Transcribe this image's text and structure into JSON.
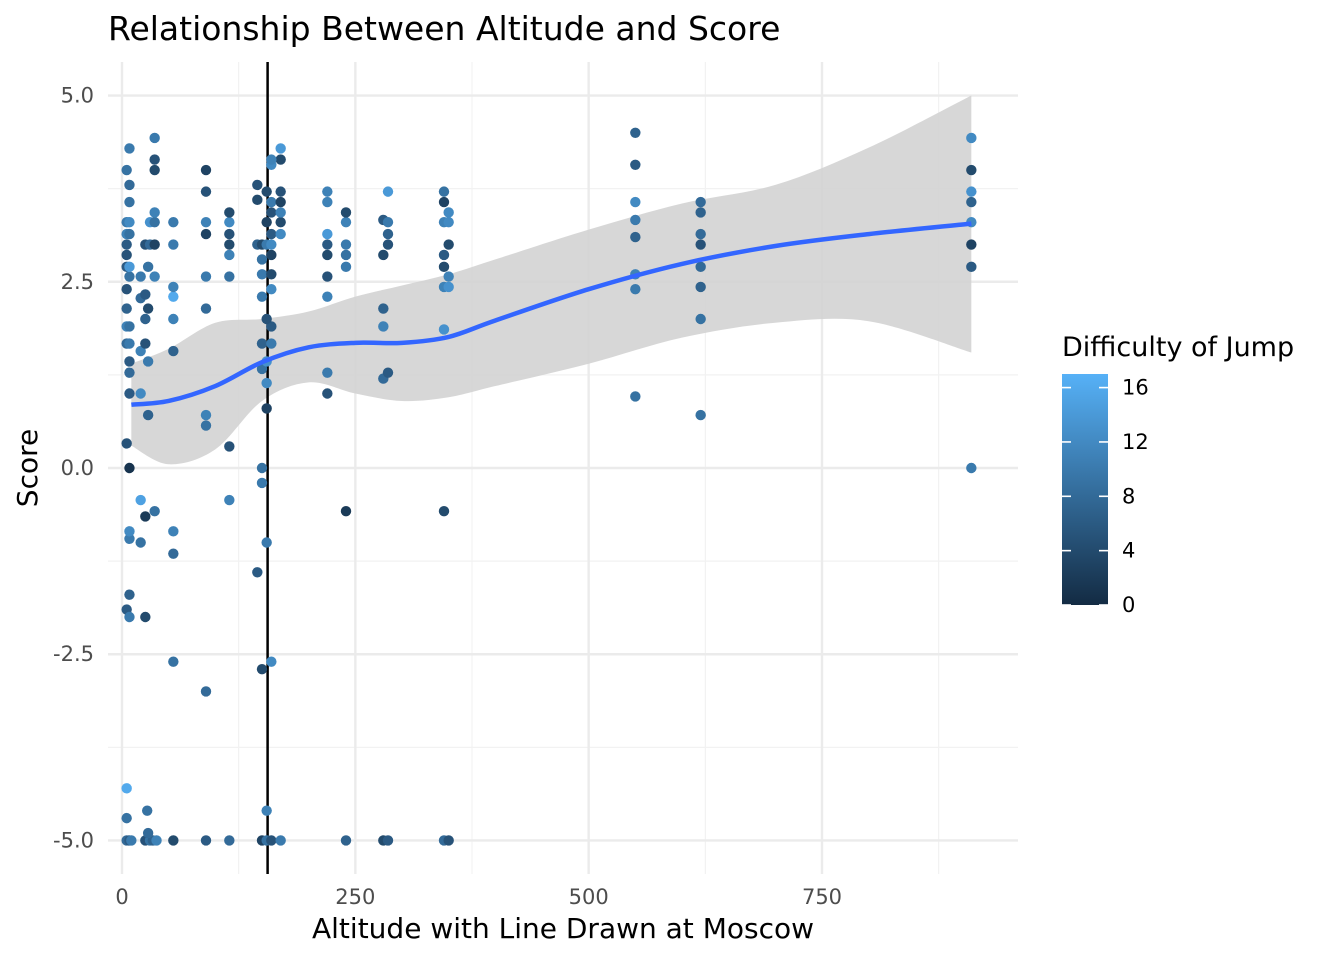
{
  "chart_data": {
    "type": "scatter",
    "title": "Relationship Between Altitude and Score",
    "xlabel": "Altitude with Line Drawn at Moscow",
    "ylabel": "Score",
    "xlim": [
      -15,
      960
    ],
    "ylim": [
      -5.45,
      5.45
    ],
    "x_ticks": [
      0,
      250,
      500,
      750
    ],
    "x_tick_labels": [
      "0",
      "250",
      "500",
      "750"
    ],
    "y_ticks": [
      -5,
      -2.5,
      0,
      2.5,
      5
    ],
    "y_tick_labels": [
      "-5.0",
      "-2.5",
      "0.0",
      "2.5",
      "5.0"
    ],
    "grid": true,
    "vline": {
      "x": 156
    },
    "smooth": {
      "color": "#3366FF",
      "band_color": "#D3D3D3",
      "x": [
        10,
        50,
        100,
        150,
        200,
        250,
        300,
        350,
        400,
        500,
        600,
        700,
        800,
        910
      ],
      "y": [
        0.85,
        0.9,
        1.1,
        1.42,
        1.62,
        1.68,
        1.68,
        1.76,
        1.98,
        2.4,
        2.74,
        2.98,
        3.14,
        3.28
      ],
      "lower": [
        0.3,
        0.05,
        0.25,
        0.9,
        1.15,
        1.0,
        0.9,
        0.95,
        1.1,
        1.4,
        1.75,
        1.95,
        1.97,
        1.55
      ],
      "upper": [
        1.4,
        1.6,
        1.95,
        2.0,
        2.1,
        2.3,
        2.45,
        2.6,
        2.8,
        3.2,
        3.55,
        3.8,
        4.3,
        5.0
      ]
    },
    "legend": {
      "title": "Difficulty of Jump",
      "placement": "right",
      "min": 0,
      "max": 17,
      "ticks": [
        0,
        4,
        8,
        12,
        16
      ],
      "low_color": "#132B43",
      "high_color": "#56B1F7"
    },
    "points": [
      {
        "x": 5,
        "y": -5,
        "d": 8
      },
      {
        "x": 8,
        "y": -5,
        "d": 6
      },
      {
        "x": 10,
        "y": -5,
        "d": 10
      },
      {
        "x": 25,
        "y": -5,
        "d": 5
      },
      {
        "x": 30,
        "y": -5,
        "d": 9
      },
      {
        "x": 33,
        "y": -5,
        "d": 7
      },
      {
        "x": 37,
        "y": -5,
        "d": 11
      },
      {
        "x": 55,
        "y": -5,
        "d": 4
      },
      {
        "x": 90,
        "y": -5,
        "d": 6
      },
      {
        "x": 115,
        "y": -5,
        "d": 8
      },
      {
        "x": 150,
        "y": -5,
        "d": 3
      },
      {
        "x": 155,
        "y": -5,
        "d": 9
      },
      {
        "x": 160,
        "y": -5,
        "d": 5
      },
      {
        "x": 170,
        "y": -5,
        "d": 10
      },
      {
        "x": 240,
        "y": -5,
        "d": 7
      },
      {
        "x": 280,
        "y": -5,
        "d": 4
      },
      {
        "x": 285,
        "y": -5,
        "d": 6
      },
      {
        "x": 345,
        "y": -5,
        "d": 8
      },
      {
        "x": 350,
        "y": -5,
        "d": 5
      },
      {
        "x": 5,
        "y": -4.3,
        "d": 16
      },
      {
        "x": 5,
        "y": -4.7,
        "d": 9
      },
      {
        "x": 27,
        "y": -4.6,
        "d": 9
      },
      {
        "x": 28,
        "y": -4.9,
        "d": 8
      },
      {
        "x": 155,
        "y": -4.6,
        "d": 11
      },
      {
        "x": 90,
        "y": -3.0,
        "d": 8
      },
      {
        "x": 55,
        "y": -2.6,
        "d": 9
      },
      {
        "x": 160,
        "y": -2.6,
        "d": 12
      },
      {
        "x": 150,
        "y": -2.7,
        "d": 4
      },
      {
        "x": 8,
        "y": -1.7,
        "d": 7
      },
      {
        "x": 5,
        "y": -1.9,
        "d": 6
      },
      {
        "x": 8,
        "y": -2.0,
        "d": 10
      },
      {
        "x": 25,
        "y": -2.0,
        "d": 4
      },
      {
        "x": 145,
        "y": -1.4,
        "d": 6
      },
      {
        "x": 55,
        "y": -1.15,
        "d": 8
      },
      {
        "x": 20,
        "y": -1.0,
        "d": 9
      },
      {
        "x": 8,
        "y": -0.95,
        "d": 10
      },
      {
        "x": 8,
        "y": -0.85,
        "d": 12
      },
      {
        "x": 55,
        "y": -0.85,
        "d": 11
      },
      {
        "x": 155,
        "y": -1.0,
        "d": 10
      },
      {
        "x": 25,
        "y": -0.65,
        "d": 2
      },
      {
        "x": 35,
        "y": -0.58,
        "d": 9
      },
      {
        "x": 240,
        "y": -0.58,
        "d": 2
      },
      {
        "x": 345,
        "y": -0.58,
        "d": 4
      },
      {
        "x": 20,
        "y": -0.43,
        "d": 15
      },
      {
        "x": 115,
        "y": -0.43,
        "d": 11
      },
      {
        "x": 150,
        "y": -0.2,
        "d": 10
      },
      {
        "x": 150,
        "y": 0,
        "d": 9
      },
      {
        "x": 8,
        "y": 0,
        "d": 1
      },
      {
        "x": 910,
        "y": 0,
        "d": 10
      },
      {
        "x": 5,
        "y": 0.33,
        "d": 5
      },
      {
        "x": 115,
        "y": 0.29,
        "d": 5
      },
      {
        "x": 90,
        "y": 0.57,
        "d": 9
      },
      {
        "x": 90,
        "y": 0.71,
        "d": 11
      },
      {
        "x": 28,
        "y": 0.71,
        "d": 7
      },
      {
        "x": 155,
        "y": 0.8,
        "d": 3
      },
      {
        "x": 550,
        "y": 0.96,
        "d": 9
      },
      {
        "x": 620,
        "y": 0.71,
        "d": 9
      },
      {
        "x": 8,
        "y": 1.0,
        "d": 6
      },
      {
        "x": 20,
        "y": 1.0,
        "d": 12
      },
      {
        "x": 220,
        "y": 1.0,
        "d": 5
      },
      {
        "x": 280,
        "y": 1.2,
        "d": 8
      },
      {
        "x": 285,
        "y": 1.28,
        "d": 6
      },
      {
        "x": 220,
        "y": 1.28,
        "d": 10
      },
      {
        "x": 155,
        "y": 1.14,
        "d": 12
      },
      {
        "x": 8,
        "y": 1.28,
        "d": 8
      },
      {
        "x": 8,
        "y": 1.43,
        "d": 6
      },
      {
        "x": 28,
        "y": 1.43,
        "d": 10
      },
      {
        "x": 150,
        "y": 1.33,
        "d": 9
      },
      {
        "x": 155,
        "y": 1.43,
        "d": 13
      },
      {
        "x": 20,
        "y": 1.57,
        "d": 11
      },
      {
        "x": 55,
        "y": 1.57,
        "d": 7
      },
      {
        "x": 5,
        "y": 1.67,
        "d": 8
      },
      {
        "x": 8,
        "y": 1.67,
        "d": 10
      },
      {
        "x": 25,
        "y": 1.67,
        "d": 5
      },
      {
        "x": 150,
        "y": 1.67,
        "d": 7
      },
      {
        "x": 160,
        "y": 1.67,
        "d": 10
      },
      {
        "x": 345,
        "y": 1.86,
        "d": 13
      },
      {
        "x": 280,
        "y": 1.9,
        "d": 11
      },
      {
        "x": 160,
        "y": 1.9,
        "d": 6
      },
      {
        "x": 5,
        "y": 1.9,
        "d": 11
      },
      {
        "x": 8,
        "y": 1.9,
        "d": 9
      },
      {
        "x": 155,
        "y": 2.0,
        "d": 5
      },
      {
        "x": 25,
        "y": 2.0,
        "d": 7
      },
      {
        "x": 55,
        "y": 2.0,
        "d": 11
      },
      {
        "x": 620,
        "y": 2.0,
        "d": 9
      },
      {
        "x": 5,
        "y": 2.14,
        "d": 7
      },
      {
        "x": 28,
        "y": 2.14,
        "d": 4
      },
      {
        "x": 90,
        "y": 2.14,
        "d": 8
      },
      {
        "x": 280,
        "y": 2.14,
        "d": 7
      },
      {
        "x": 20,
        "y": 2.28,
        "d": 8
      },
      {
        "x": 25,
        "y": 2.33,
        "d": 6
      },
      {
        "x": 55,
        "y": 2.3,
        "d": 16
      },
      {
        "x": 150,
        "y": 2.3,
        "d": 10
      },
      {
        "x": 220,
        "y": 2.3,
        "d": 11
      },
      {
        "x": 550,
        "y": 2.4,
        "d": 10
      },
      {
        "x": 5,
        "y": 2.4,
        "d": 5
      },
      {
        "x": 160,
        "y": 2.4,
        "d": 12
      },
      {
        "x": 345,
        "y": 2.43,
        "d": 11
      },
      {
        "x": 350,
        "y": 2.43,
        "d": 13
      },
      {
        "x": 620,
        "y": 2.43,
        "d": 7
      },
      {
        "x": 55,
        "y": 2.43,
        "d": 11
      },
      {
        "x": 35,
        "y": 2.57,
        "d": 11
      },
      {
        "x": 8,
        "y": 2.57,
        "d": 9
      },
      {
        "x": 20,
        "y": 2.57,
        "d": 10
      },
      {
        "x": 90,
        "y": 2.57,
        "d": 10
      },
      {
        "x": 115,
        "y": 2.57,
        "d": 9
      },
      {
        "x": 150,
        "y": 2.6,
        "d": 10
      },
      {
        "x": 220,
        "y": 2.57,
        "d": 5
      },
      {
        "x": 350,
        "y": 2.57,
        "d": 11
      },
      {
        "x": 550,
        "y": 2.6,
        "d": 11
      },
      {
        "x": 5,
        "y": 2.7,
        "d": 6
      },
      {
        "x": 8,
        "y": 2.7,
        "d": 14
      },
      {
        "x": 28,
        "y": 2.7,
        "d": 9
      },
      {
        "x": 160,
        "y": 2.6,
        "d": 4
      },
      {
        "x": 240,
        "y": 2.7,
        "d": 10
      },
      {
        "x": 345,
        "y": 2.7,
        "d": 4
      },
      {
        "x": 620,
        "y": 2.7,
        "d": 8
      },
      {
        "x": 910,
        "y": 2.7,
        "d": 6
      },
      {
        "x": 150,
        "y": 2.8,
        "d": 9
      },
      {
        "x": 5,
        "y": 2.86,
        "d": 5
      },
      {
        "x": 115,
        "y": 2.86,
        "d": 11
      },
      {
        "x": 160,
        "y": 2.86,
        "d": 3
      },
      {
        "x": 220,
        "y": 2.86,
        "d": 4
      },
      {
        "x": 240,
        "y": 2.86,
        "d": 9
      },
      {
        "x": 280,
        "y": 2.86,
        "d": 4
      },
      {
        "x": 345,
        "y": 2.86,
        "d": 6
      },
      {
        "x": 5,
        "y": 3.0,
        "d": 6
      },
      {
        "x": 25,
        "y": 3.0,
        "d": 5
      },
      {
        "x": 30,
        "y": 3.0,
        "d": 8
      },
      {
        "x": 35,
        "y": 3.0,
        "d": 3
      },
      {
        "x": 55,
        "y": 3.0,
        "d": 10
      },
      {
        "x": 115,
        "y": 3.0,
        "d": 4
      },
      {
        "x": 145,
        "y": 3.0,
        "d": 7
      },
      {
        "x": 150,
        "y": 3.0,
        "d": 4
      },
      {
        "x": 155,
        "y": 3.0,
        "d": 10
      },
      {
        "x": 160,
        "y": 3.0,
        "d": 12
      },
      {
        "x": 220,
        "y": 3.0,
        "d": 6
      },
      {
        "x": 240,
        "y": 3.0,
        "d": 10
      },
      {
        "x": 285,
        "y": 3.0,
        "d": 5
      },
      {
        "x": 350,
        "y": 3.0,
        "d": 4
      },
      {
        "x": 620,
        "y": 3.0,
        "d": 5
      },
      {
        "x": 910,
        "y": 3.0,
        "d": 3
      },
      {
        "x": 5,
        "y": 3.14,
        "d": 11
      },
      {
        "x": 8,
        "y": 3.14,
        "d": 9
      },
      {
        "x": 90,
        "y": 3.14,
        "d": 3
      },
      {
        "x": 115,
        "y": 3.14,
        "d": 5
      },
      {
        "x": 160,
        "y": 3.14,
        "d": 6
      },
      {
        "x": 170,
        "y": 3.14,
        "d": 12
      },
      {
        "x": 220,
        "y": 3.14,
        "d": 14
      },
      {
        "x": 285,
        "y": 3.14,
        "d": 7
      },
      {
        "x": 620,
        "y": 3.14,
        "d": 8
      },
      {
        "x": 550,
        "y": 3.1,
        "d": 7
      },
      {
        "x": 5,
        "y": 3.3,
        "d": 10
      },
      {
        "x": 8,
        "y": 3.3,
        "d": 12
      },
      {
        "x": 30,
        "y": 3.3,
        "d": 13
      },
      {
        "x": 35,
        "y": 3.3,
        "d": 9
      },
      {
        "x": 55,
        "y": 3.3,
        "d": 10
      },
      {
        "x": 90,
        "y": 3.3,
        "d": 11
      },
      {
        "x": 115,
        "y": 3.3,
        "d": 12
      },
      {
        "x": 155,
        "y": 3.3,
        "d": 3
      },
      {
        "x": 170,
        "y": 3.3,
        "d": 4
      },
      {
        "x": 240,
        "y": 3.3,
        "d": 11
      },
      {
        "x": 280,
        "y": 3.33,
        "d": 6
      },
      {
        "x": 285,
        "y": 3.3,
        "d": 10
      },
      {
        "x": 345,
        "y": 3.3,
        "d": 11
      },
      {
        "x": 350,
        "y": 3.3,
        "d": 12
      },
      {
        "x": 550,
        "y": 3.33,
        "d": 10
      },
      {
        "x": 910,
        "y": 3.3,
        "d": 12
      },
      {
        "x": 35,
        "y": 3.43,
        "d": 11
      },
      {
        "x": 115,
        "y": 3.43,
        "d": 4
      },
      {
        "x": 160,
        "y": 3.43,
        "d": 5
      },
      {
        "x": 170,
        "y": 3.43,
        "d": 11
      },
      {
        "x": 240,
        "y": 3.43,
        "d": 4
      },
      {
        "x": 350,
        "y": 3.43,
        "d": 12
      },
      {
        "x": 620,
        "y": 3.43,
        "d": 7
      },
      {
        "x": 8,
        "y": 3.57,
        "d": 9
      },
      {
        "x": 145,
        "y": 3.6,
        "d": 4
      },
      {
        "x": 160,
        "y": 3.57,
        "d": 10
      },
      {
        "x": 170,
        "y": 3.57,
        "d": 3
      },
      {
        "x": 220,
        "y": 3.57,
        "d": 11
      },
      {
        "x": 345,
        "y": 3.57,
        "d": 3
      },
      {
        "x": 550,
        "y": 3.57,
        "d": 12
      },
      {
        "x": 620,
        "y": 3.57,
        "d": 8
      },
      {
        "x": 910,
        "y": 3.57,
        "d": 7
      },
      {
        "x": 90,
        "y": 3.71,
        "d": 5
      },
      {
        "x": 155,
        "y": 3.71,
        "d": 4
      },
      {
        "x": 170,
        "y": 3.71,
        "d": 5
      },
      {
        "x": 220,
        "y": 3.71,
        "d": 11
      },
      {
        "x": 285,
        "y": 3.71,
        "d": 14
      },
      {
        "x": 345,
        "y": 3.71,
        "d": 9
      },
      {
        "x": 910,
        "y": 3.71,
        "d": 13
      },
      {
        "x": 8,
        "y": 3.8,
        "d": 8
      },
      {
        "x": 145,
        "y": 3.8,
        "d": 5
      },
      {
        "x": 5,
        "y": 4.0,
        "d": 9
      },
      {
        "x": 35,
        "y": 4.0,
        "d": 4
      },
      {
        "x": 90,
        "y": 4.0,
        "d": 3
      },
      {
        "x": 910,
        "y": 4.0,
        "d": 4
      },
      {
        "x": 160,
        "y": 4.07,
        "d": 12
      },
      {
        "x": 550,
        "y": 4.07,
        "d": 6
      },
      {
        "x": 35,
        "y": 4.14,
        "d": 5
      },
      {
        "x": 170,
        "y": 4.14,
        "d": 4
      },
      {
        "x": 160,
        "y": 4.14,
        "d": 11
      },
      {
        "x": 8,
        "y": 4.29,
        "d": 10
      },
      {
        "x": 170,
        "y": 4.29,
        "d": 14
      },
      {
        "x": 35,
        "y": 4.43,
        "d": 10
      },
      {
        "x": 910,
        "y": 4.43,
        "d": 12
      },
      {
        "x": 550,
        "y": 4.5,
        "d": 7
      }
    ]
  }
}
